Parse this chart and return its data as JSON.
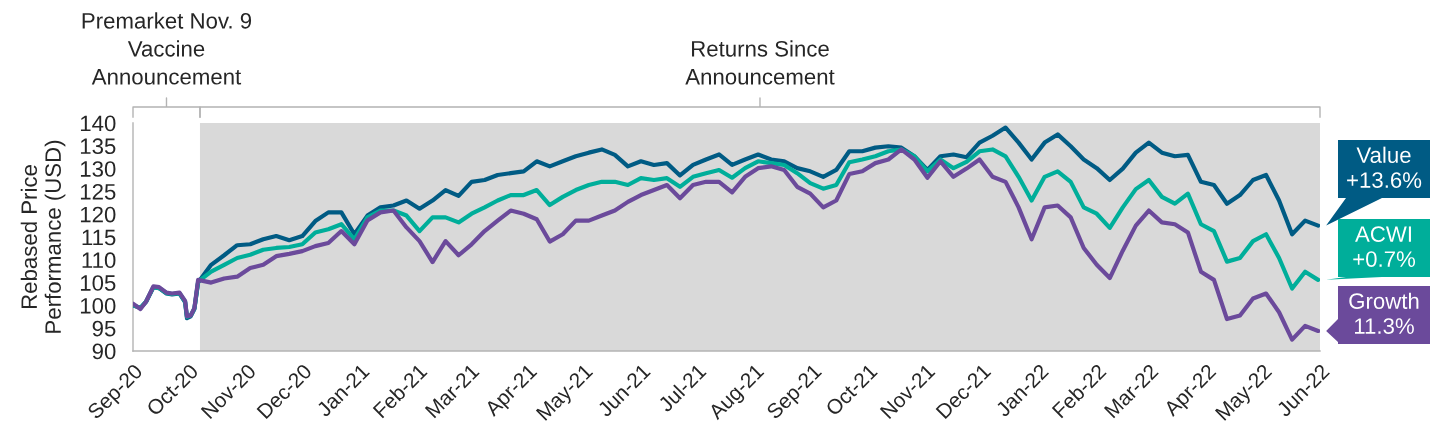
{
  "chart_data": {
    "type": "line",
    "ylabel": "Rebased Price\nPerformance (USD)",
    "x": [
      "2020-09-01",
      "2020-09-05",
      "2020-09-08",
      "2020-09-12",
      "2020-09-15",
      "2020-09-19",
      "2020-09-22",
      "2020-09-26",
      "2020-09-29",
      "2020-09-30",
      "2020-10-02",
      "2020-10-04",
      "2020-10-06",
      "2020-10-13",
      "2020-10-20",
      "2020-10-27",
      "2020-11-03",
      "2020-11-10",
      "2020-11-17",
      "2020-11-24",
      "2020-12-01",
      "2020-12-08",
      "2020-12-15",
      "2020-12-22",
      "2020-12-29",
      "2021-01-05",
      "2021-01-12",
      "2021-01-19",
      "2021-01-26",
      "2021-02-02",
      "2021-02-09",
      "2021-02-16",
      "2021-02-23",
      "2021-03-02",
      "2021-03-09",
      "2021-03-16",
      "2021-03-23",
      "2021-03-30",
      "2021-04-06",
      "2021-04-13",
      "2021-04-20",
      "2021-04-27",
      "2021-05-04",
      "2021-05-11",
      "2021-05-18",
      "2021-05-25",
      "2021-06-01",
      "2021-06-08",
      "2021-06-15",
      "2021-06-22",
      "2021-06-29",
      "2021-07-06",
      "2021-07-13",
      "2021-07-20",
      "2021-07-27",
      "2021-08-03",
      "2021-08-10",
      "2021-08-17",
      "2021-08-24",
      "2021-08-31",
      "2021-09-07",
      "2021-09-14",
      "2021-09-21",
      "2021-09-28",
      "2021-10-05",
      "2021-10-12",
      "2021-10-19",
      "2021-10-26",
      "2021-11-02",
      "2021-11-09",
      "2021-11-16",
      "2021-11-23",
      "2021-11-30",
      "2021-12-07",
      "2021-12-14",
      "2021-12-21",
      "2021-12-28",
      "2022-01-04",
      "2022-01-11",
      "2022-01-18",
      "2022-01-25",
      "2022-02-01",
      "2022-02-08",
      "2022-02-15",
      "2022-02-22",
      "2022-03-01",
      "2022-03-08",
      "2022-03-15",
      "2022-03-22",
      "2022-03-29",
      "2022-04-05",
      "2022-04-12",
      "2022-04-19",
      "2022-04-26",
      "2022-05-03",
      "2022-05-10",
      "2022-05-17",
      "2022-05-24",
      "2022-05-31"
    ],
    "series": [
      {
        "name": "Value",
        "color": "#005b84",
        "values": [
          100,
          99.4,
          100.8,
          104.0,
          103.8,
          102.6,
          102.4,
          102.6,
          100.7,
          97.2,
          97.6,
          99.2,
          105.0,
          108.9,
          111.0,
          113.2,
          113.4,
          114.5,
          115.2,
          114.3,
          115.2,
          118.5,
          120.4,
          120.4,
          115.6,
          119.7,
          121.5,
          121.9,
          123.0,
          121.2,
          123.0,
          125.3,
          124.0,
          127.1,
          127.5,
          128.6,
          129.0,
          129.4,
          131.6,
          130.5,
          131.6,
          132.7,
          133.5,
          134.2,
          133.0,
          130.5,
          131.6,
          130.8,
          131.2,
          128.5,
          130.8,
          132.0,
          133.1,
          130.8,
          132.0,
          133.1,
          132.0,
          131.6,
          130.1,
          129.4,
          128.2,
          129.7,
          133.8,
          133.8,
          134.6,
          134.9,
          134.6,
          132.7,
          129.7,
          132.7,
          133.1,
          132.5,
          135.7,
          137.2,
          139.0,
          135.7,
          132.0,
          135.7,
          137.5,
          134.9,
          132.0,
          130.1,
          127.5,
          130.0,
          133.5,
          135.7,
          133.5,
          132.7,
          133.0,
          127.1,
          126.4,
          122.3,
          124.2,
          127.5,
          128.6,
          123.0,
          115.6,
          118.6,
          117.5
        ]
      },
      {
        "name": "ACWI",
        "color": "#00ae9a",
        "values": [
          100,
          99.5,
          100.8,
          104.0,
          103.8,
          102.7,
          102.5,
          102.7,
          100.8,
          97.5,
          97.8,
          99.3,
          105.2,
          107.4,
          108.9,
          110.4,
          111.1,
          112.2,
          112.6,
          112.8,
          113.4,
          116.0,
          116.7,
          117.8,
          114.5,
          119.3,
          120.8,
          120.8,
          119.7,
          116.3,
          119.3,
          119.3,
          118.2,
          120.1,
          121.5,
          123.0,
          124.2,
          124.2,
          125.3,
          122.0,
          123.8,
          125.3,
          126.4,
          127.1,
          127.1,
          126.4,
          127.9,
          127.5,
          127.9,
          126.0,
          128.2,
          129.0,
          129.7,
          128.0,
          130.1,
          131.6,
          131.2,
          130.8,
          129.0,
          126.8,
          125.6,
          126.4,
          131.4,
          132.0,
          132.7,
          133.8,
          134.2,
          132.7,
          129.4,
          132.0,
          130.1,
          131.5,
          133.8,
          134.2,
          132.7,
          128.2,
          123.0,
          128.2,
          129.4,
          127.1,
          121.5,
          120.1,
          117.0,
          121.5,
          125.5,
          127.5,
          123.8,
          122.3,
          124.5,
          117.8,
          116.3,
          109.6,
          110.4,
          114.1,
          115.6,
          110.4,
          103.7,
          107.4,
          105.6
        ]
      },
      {
        "name": "Growth",
        "color": "#6b4a9b",
        "values": [
          100.4,
          99.2,
          100.8,
          104.2,
          104.0,
          102.8,
          102.6,
          102.8,
          101.0,
          97.6,
          97.8,
          99.4,
          105.6,
          105.0,
          105.9,
          106.3,
          108.2,
          108.9,
          110.8,
          111.3,
          111.9,
          113.0,
          113.7,
          116.3,
          113.4,
          118.6,
          120.4,
          120.8,
          117.1,
          114.1,
          109.5,
          114.1,
          111.0,
          113.4,
          116.3,
          118.6,
          120.8,
          120.1,
          118.9,
          114.0,
          115.6,
          118.6,
          118.6,
          119.7,
          120.8,
          122.7,
          124.2,
          125.3,
          126.4,
          123.5,
          126.4,
          127.1,
          127.1,
          124.8,
          128.2,
          130.1,
          130.5,
          129.7,
          126.0,
          124.5,
          121.5,
          123.0,
          128.8,
          129.4,
          131.2,
          132.0,
          134.2,
          132.0,
          128.0,
          131.6,
          128.2,
          130.0,
          132.0,
          128.2,
          127.1,
          121.5,
          114.5,
          121.5,
          121.9,
          119.3,
          112.6,
          108.9,
          106.0,
          112.0,
          117.5,
          120.8,
          118.2,
          117.8,
          116.0,
          107.4,
          105.6,
          97.0,
          97.8,
          101.5,
          102.6,
          98.5,
          92.5,
          95.5,
          94.4
        ]
      }
    ],
    "xlim": [
      "2020-09-01",
      "2022-06-01"
    ],
    "xticks": [
      {
        "value": "2020-09-01",
        "label": "Sep-20"
      },
      {
        "value": "2020-10-01",
        "label": "Oct-20"
      },
      {
        "value": "2020-11-01",
        "label": "Nov-20"
      },
      {
        "value": "2020-12-01",
        "label": "Dec-20"
      },
      {
        "value": "2021-01-01",
        "label": "Jan-21"
      },
      {
        "value": "2021-02-01",
        "label": "Feb-21"
      },
      {
        "value": "2021-03-01",
        "label": "Mar-21"
      },
      {
        "value": "2021-04-01",
        "label": "Apr-21"
      },
      {
        "value": "2021-05-01",
        "label": "May-21"
      },
      {
        "value": "2021-06-01",
        "label": "Jun-21"
      },
      {
        "value": "2021-07-01",
        "label": "Jul-21"
      },
      {
        "value": "2021-08-01",
        "label": "Aug-21"
      },
      {
        "value": "2021-09-01",
        "label": "Sep-21"
      },
      {
        "value": "2021-10-01",
        "label": "Oct-21"
      },
      {
        "value": "2021-11-01",
        "label": "Nov-21"
      },
      {
        "value": "2021-12-01",
        "label": "Dec-21"
      },
      {
        "value": "2022-01-01",
        "label": "Jan-22"
      },
      {
        "value": "2022-02-01",
        "label": "Feb-22"
      },
      {
        "value": "2022-03-01",
        "label": "Mar-22"
      },
      {
        "value": "2022-04-01",
        "label": "Apr-22"
      },
      {
        "value": "2022-05-01",
        "label": "May-22"
      },
      {
        "value": "2022-06-01",
        "label": "Jun-22"
      }
    ],
    "ylim": [
      90,
      140
    ],
    "yticks": [
      90,
      95,
      100,
      105,
      110,
      115,
      120,
      125,
      130,
      135,
      140
    ],
    "bands": [
      {
        "axis": "x",
        "from": "2020-10-07",
        "to": "2022-06-01",
        "label": "Returns Since\nAnnouncement",
        "color": "#d9d9d9"
      }
    ],
    "annotations": [
      "Premarket Nov. 9\nVaccine\nAnnouncement",
      {
        "text": "+13.6%",
        "x": "2022-05-31",
        "y": 117.5
      },
      {
        "text": "+0.7%",
        "x": "2022-05-31",
        "y": 105.6
      },
      {
        "text": "11.3%",
        "x": "2022-05-31",
        "y": 94.4
      }
    ]
  }
}
